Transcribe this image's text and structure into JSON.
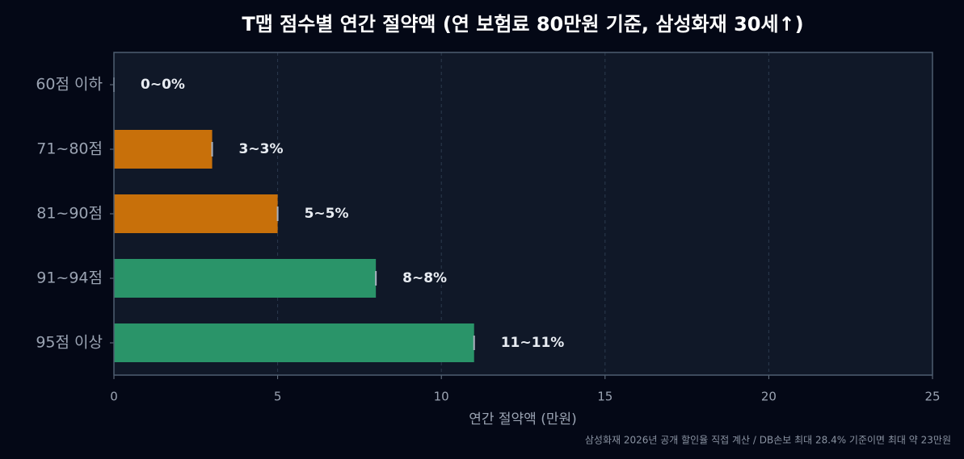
{
  "chart_data": {
    "type": "barh",
    "title": "T맵 점수별 연간 절약액 (연 보험료 80만원 기준, 삼성화재 30세↑)",
    "xlabel": "연간 절약액 (만원)",
    "footnote": "삼성화재 2026년 공개 할인율 직접 계산 / DB손보 최대 28.4% 기준이면 최대 약 23만원",
    "categories": [
      "60점 이하",
      "71~80점",
      "81~90점",
      "91~94점",
      "95점 이상"
    ],
    "values": [
      0,
      3,
      5,
      8,
      11
    ],
    "xerr": [
      0,
      0,
      0,
      0,
      0
    ],
    "value_labels": [
      "0~0%",
      "3~3%",
      "5~5%",
      "8~8%",
      "11~11%"
    ],
    "colors": [
      "#c8700a",
      "#c8700a",
      "#c8700a",
      "#2a9469",
      "#2a9469"
    ],
    "xlim": [
      0,
      25
    ],
    "xticks": [
      0,
      5,
      10,
      15,
      20,
      25
    ],
    "grid": true
  }
}
